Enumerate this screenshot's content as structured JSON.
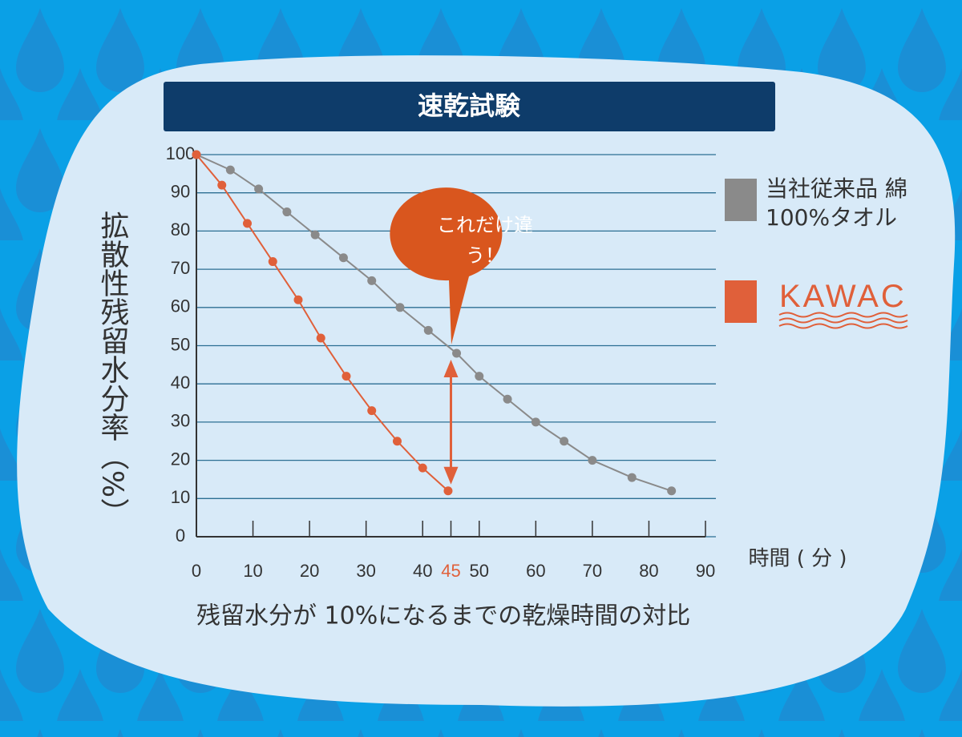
{
  "chart_data": {
    "type": "line",
    "title": "速乾試験",
    "subtitle": "残留水分が 10%になるまでの乾燥時間の対比",
    "y_label": "拡散性残留水分率（%）",
    "x_label": "時間 ( 分 )",
    "xlim": [
      0,
      90
    ],
    "xticks": [
      0,
      10,
      20,
      30,
      40,
      50,
      60,
      70,
      80,
      90
    ],
    "ylim": [
      0,
      100
    ],
    "yticks": [
      0,
      10,
      20,
      30,
      40,
      50,
      60,
      70,
      80,
      90,
      100
    ],
    "grid": true,
    "highlight_x": {
      "value": 45,
      "color": "#e0603a"
    },
    "annotation": "これだけ違う！",
    "series": [
      {
        "name": "当社従来品 綿 100%タオル",
        "color": "#8a8a8a",
        "x": [
          0,
          6,
          11,
          16,
          21,
          26,
          31,
          36,
          41,
          46,
          50,
          55,
          60,
          65,
          70,
          77,
          84
        ],
        "values": [
          100,
          96,
          91,
          85,
          79,
          73,
          67,
          60,
          54,
          48,
          42,
          36,
          30,
          25,
          20,
          15.5,
          12
        ]
      },
      {
        "name": "KAWAC",
        "color": "#e0603a",
        "x": [
          0,
          4.5,
          9,
          13.5,
          18,
          22,
          26.5,
          31,
          35.5,
          40,
          44.5
        ],
        "values": [
          100,
          92,
          82,
          72,
          62,
          52,
          42,
          33,
          25,
          18,
          12
        ]
      }
    ]
  }
}
